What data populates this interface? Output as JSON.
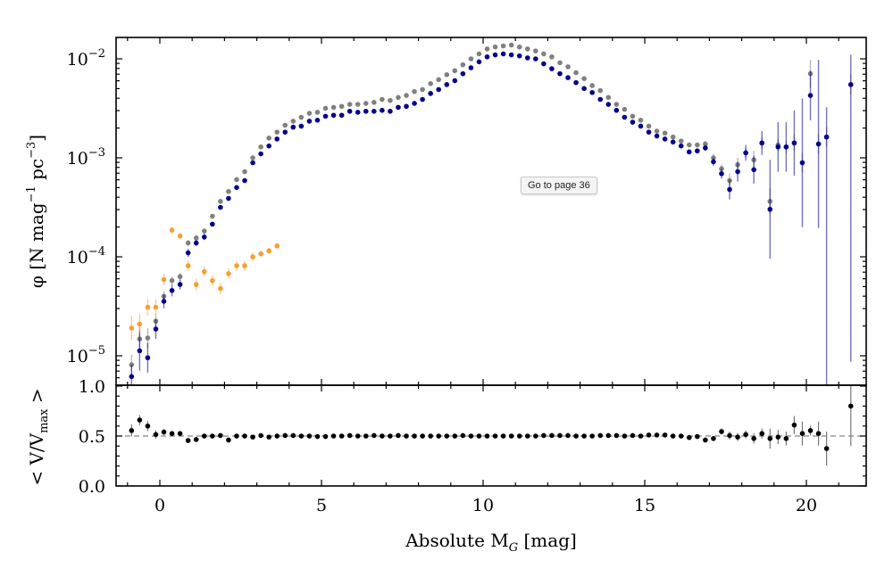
{
  "tooltip": {
    "text": "Go to page 36"
  },
  "chart_data": [
    {
      "type": "scatter",
      "panel": "top",
      "ylabel_parts": [
        "φ [N mag",
        "−1",
        " pc",
        "−3",
        "]"
      ],
      "yscale": "log",
      "ylim": [
        5e-06,
        0.0166
      ],
      "xlim": [
        -1.35,
        21.85
      ],
      "y_tick_labels": [
        {
          "value": -2,
          "base": "10",
          "exp": "−2"
        },
        {
          "value": -3,
          "base": "10",
          "exp": "−3"
        },
        {
          "value": -4,
          "base": "10",
          "exp": "−4"
        },
        {
          "value": -5,
          "base": "10",
          "exp": "−5"
        }
      ],
      "x": [
        -0.875,
        -0.625,
        -0.375,
        -0.125,
        0.125,
        0.375,
        0.625,
        0.875,
        1.125,
        1.375,
        1.625,
        1.875,
        2.125,
        2.375,
        2.625,
        2.875,
        3.125,
        3.375,
        3.625,
        3.875,
        4.125,
        4.375,
        4.625,
        4.875,
        5.125,
        5.375,
        5.625,
        5.875,
        6.125,
        6.375,
        6.625,
        6.875,
        7.125,
        7.375,
        7.625,
        7.875,
        8.125,
        8.375,
        8.625,
        8.875,
        9.125,
        9.375,
        9.625,
        9.875,
        10.125,
        10.375,
        10.625,
        10.875,
        11.125,
        11.375,
        11.625,
        11.875,
        12.125,
        12.375,
        12.625,
        12.875,
        13.125,
        13.375,
        13.625,
        13.875,
        14.125,
        14.375,
        14.625,
        14.875,
        15.125,
        15.375,
        15.625,
        15.875,
        16.125,
        16.375,
        16.625,
        16.875,
        17.125,
        17.375,
        17.625,
        17.875,
        18.125,
        18.375,
        18.625,
        18.875,
        19.125,
        19.375,
        19.625,
        19.875,
        20.125,
        20.375,
        20.625,
        20.875,
        21.125,
        21.375
      ],
      "series": [
        {
          "color": "#808080",
          "log10_phi": [
            -5.09,
            -4.83,
            -4.82,
            -4.65,
            -4.4,
            -4.24,
            -4.2,
            -3.86,
            -3.81,
            -3.74,
            -3.59,
            -3.44,
            -3.34,
            -3.22,
            -3.14,
            -3.0,
            -2.89,
            -2.8,
            -2.74,
            -2.67,
            -2.63,
            -2.59,
            -2.55,
            -2.54,
            -2.5,
            -2.49,
            -2.48,
            -2.46,
            -2.46,
            -2.45,
            -2.44,
            -2.41,
            -2.42,
            -2.39,
            -2.37,
            -2.33,
            -2.31,
            -2.25,
            -2.21,
            -2.16,
            -2.12,
            -2.06,
            -2.0,
            -1.95,
            -1.9,
            -1.88,
            -1.87,
            -1.86,
            -1.88,
            -1.9,
            -1.92,
            -1.95,
            -1.98,
            -2.04,
            -2.08,
            -2.14,
            -2.2,
            -2.27,
            -2.32,
            -2.39,
            -2.46,
            -2.51,
            -2.58,
            -2.62,
            -2.68,
            -2.73,
            -2.75,
            -2.79,
            -2.83,
            -2.87,
            -2.87,
            -2.86,
            -3.0,
            -3.11,
            -3.23,
            -3.07,
            -2.95,
            -3.02,
            -2.85,
            -3.44,
            -2.87,
            -2.89,
            -2.85,
            -3.05,
            -2.15,
            -2.86,
            -2.79,
            null,
            null,
            -2.26
          ],
          "err_dex": [
            0.1,
            0.12,
            0.1,
            0.07,
            0.05,
            0.04,
            0.04,
            0.03,
            0.03,
            0.03,
            0.02,
            0.02,
            0.02,
            0.02,
            0.02,
            0.02,
            0.02,
            0.02,
            0.02,
            0.02,
            0.02,
            0.02,
            0.02,
            0.02,
            0.02,
            0.02,
            0.02,
            0.02,
            0.02,
            0.02,
            0.02,
            0.02,
            0.02,
            0.02,
            0.02,
            0.02,
            0.02,
            0.02,
            0.02,
            0.02,
            0.02,
            0.02,
            0.02,
            0.02,
            0.02,
            0.02,
            0.02,
            0.02,
            0.02,
            0.02,
            0.02,
            0.02,
            0.02,
            0.02,
            0.02,
            0.02,
            0.02,
            0.02,
            0.02,
            0.02,
            0.02,
            0.02,
            0.02,
            0.02,
            0.02,
            0.02,
            0.02,
            0.02,
            0.02,
            0.02,
            0.02,
            0.03,
            0.04,
            0.04,
            0.07,
            0.07,
            0.05,
            0.09,
            0.06,
            0.13,
            0.06,
            0.06,
            0.08,
            0.1,
            0.14,
            0.1,
            0.1,
            null,
            null,
            0.1
          ]
        },
        {
          "color": "#00008b",
          "log10_phi": [
            -5.21,
            -4.95,
            -5.02,
            -4.73,
            -4.45,
            -4.34,
            -4.28,
            -3.96,
            -3.86,
            -3.8,
            -3.67,
            -3.5,
            -3.41,
            -3.3,
            -3.23,
            -3.05,
            -2.96,
            -2.88,
            -2.81,
            -2.74,
            -2.69,
            -2.68,
            -2.63,
            -2.62,
            -2.58,
            -2.57,
            -2.57,
            -2.53,
            -2.54,
            -2.53,
            -2.53,
            -2.52,
            -2.53,
            -2.49,
            -2.48,
            -2.45,
            -2.41,
            -2.35,
            -2.31,
            -2.26,
            -2.22,
            -2.15,
            -2.09,
            -2.03,
            -1.98,
            -1.96,
            -1.95,
            -1.96,
            -1.97,
            -1.99,
            -2.0,
            -2.05,
            -2.1,
            -2.15,
            -2.19,
            -2.24,
            -2.3,
            -2.34,
            -2.41,
            -2.46,
            -2.52,
            -2.59,
            -2.64,
            -2.68,
            -2.74,
            -2.78,
            -2.81,
            -2.84,
            -2.88,
            -2.94,
            -2.93,
            -2.9,
            -3.04,
            -3.16,
            -3.32,
            -3.14,
            -2.95,
            -3.12,
            -2.85,
            -3.52,
            -2.89,
            -2.89,
            -2.85,
            -3.05,
            -2.37,
            -2.86,
            -2.79,
            null,
            null,
            -2.26
          ],
          "err_dex": [
            0.12,
            0.2,
            0.15,
            0.1,
            0.07,
            0.06,
            0.05,
            0.04,
            0.03,
            0.03,
            0.02,
            0.02,
            0.02,
            0.02,
            0.02,
            0.02,
            0.02,
            0.02,
            0.02,
            0.02,
            0.02,
            0.02,
            0.02,
            0.02,
            0.02,
            0.02,
            0.02,
            0.02,
            0.02,
            0.02,
            0.02,
            0.02,
            0.02,
            0.02,
            0.02,
            0.02,
            0.02,
            0.02,
            0.02,
            0.02,
            0.02,
            0.02,
            0.02,
            0.02,
            0.02,
            0.02,
            0.02,
            0.02,
            0.02,
            0.02,
            0.02,
            0.02,
            0.02,
            0.02,
            0.02,
            0.02,
            0.02,
            0.02,
            0.02,
            0.02,
            0.02,
            0.02,
            0.02,
            0.02,
            0.02,
            0.02,
            0.02,
            0.02,
            0.02,
            0.02,
            0.02,
            0.03,
            0.04,
            0.05,
            0.1,
            0.1,
            0.08,
            0.14,
            0.12,
            0.5,
            0.25,
            0.25,
            0.33,
            0.65,
            0.25,
            0.85,
            2.5,
            null,
            null,
            2.8
          ]
        },
        {
          "color": "#f5a030",
          "log10_phi": [
            -4.72,
            -4.68,
            -4.51,
            -4.51,
            -4.23,
            -3.73,
            -3.79,
            -4.09,
            -4.28,
            -4.15,
            -4.24,
            -4.32,
            -4.17,
            -4.09,
            -4.09,
            -4.0,
            -3.97,
            -3.94,
            -3.89
          ],
          "err_dex": [
            0.12,
            0.1,
            0.08,
            0.08,
            0.06,
            0.03,
            0.03,
            0.05,
            0.06,
            0.05,
            0.05,
            0.06,
            0.05,
            0.05,
            0.05,
            0.04,
            0.03,
            0.03,
            0.03
          ]
        }
      ]
    },
    {
      "type": "scatter",
      "panel": "bottom",
      "ylabel_parts": [
        "< V/V",
        "max",
        " >"
      ],
      "ylim": [
        0.0,
        1.0
      ],
      "y_ticks": [
        0.0,
        0.5,
        1.0
      ],
      "y_tick_labels": [
        "0.0",
        "0.5",
        "1.0"
      ],
      "reference_line": 0.5,
      "xlabel_parts": [
        "Absolute M",
        "G",
        " [mag]"
      ],
      "x_ticks": [
        0,
        5,
        10,
        15,
        20
      ],
      "x_tick_labels": [
        "0",
        "5",
        "10",
        "15",
        "20"
      ],
      "color": "#000000",
      "vvmax": [
        0.555,
        0.66,
        0.6,
        0.515,
        0.54,
        0.525,
        0.525,
        0.455,
        0.465,
        0.5,
        0.5,
        0.505,
        0.46,
        0.5,
        0.5,
        0.49,
        0.505,
        0.49,
        0.5,
        0.505,
        0.505,
        0.5,
        0.5,
        0.495,
        0.495,
        0.5,
        0.5,
        0.505,
        0.5,
        0.5,
        0.505,
        0.5,
        0.5,
        0.505,
        0.5,
        0.5,
        0.5,
        0.5,
        0.5,
        0.5,
        0.5,
        0.505,
        0.5,
        0.5,
        0.5,
        0.5,
        0.5,
        0.5,
        0.5,
        0.5,
        0.5,
        0.505,
        0.505,
        0.505,
        0.505,
        0.5,
        0.5,
        0.5,
        0.505,
        0.505,
        0.505,
        0.5,
        0.505,
        0.5,
        0.51,
        0.51,
        0.51,
        0.5,
        0.5,
        0.485,
        0.495,
        0.46,
        0.475,
        0.545,
        0.505,
        0.49,
        0.515,
        0.475,
        0.525,
        0.475,
        0.49,
        0.475,
        0.61,
        0.525,
        0.555,
        0.525,
        0.375,
        null,
        null,
        0.8
      ],
      "err": [
        0.06,
        0.05,
        0.05,
        0.04,
        0.03,
        0.02,
        0.02,
        0.01,
        0.01,
        0.01,
        0.01,
        0.01,
        0.01,
        0.01,
        0.01,
        0.01,
        0.01,
        0.01,
        0.01,
        0.01,
        0.01,
        0.01,
        0.01,
        0.01,
        0.01,
        0.01,
        0.01,
        0.01,
        0.01,
        0.01,
        0.01,
        0.01,
        0.01,
        0.01,
        0.01,
        0.01,
        0.01,
        0.01,
        0.01,
        0.01,
        0.01,
        0.01,
        0.01,
        0.01,
        0.01,
        0.01,
        0.01,
        0.01,
        0.01,
        0.01,
        0.01,
        0.01,
        0.01,
        0.01,
        0.01,
        0.01,
        0.01,
        0.01,
        0.01,
        0.01,
        0.01,
        0.01,
        0.01,
        0.01,
        0.01,
        0.01,
        0.01,
        0.01,
        0.01,
        0.01,
        0.01,
        0.01,
        0.02,
        0.03,
        0.04,
        0.04,
        0.04,
        0.05,
        0.05,
        0.1,
        0.07,
        0.07,
        0.09,
        0.12,
        0.05,
        0.12,
        0.17,
        null,
        null,
        0.4
      ]
    }
  ]
}
